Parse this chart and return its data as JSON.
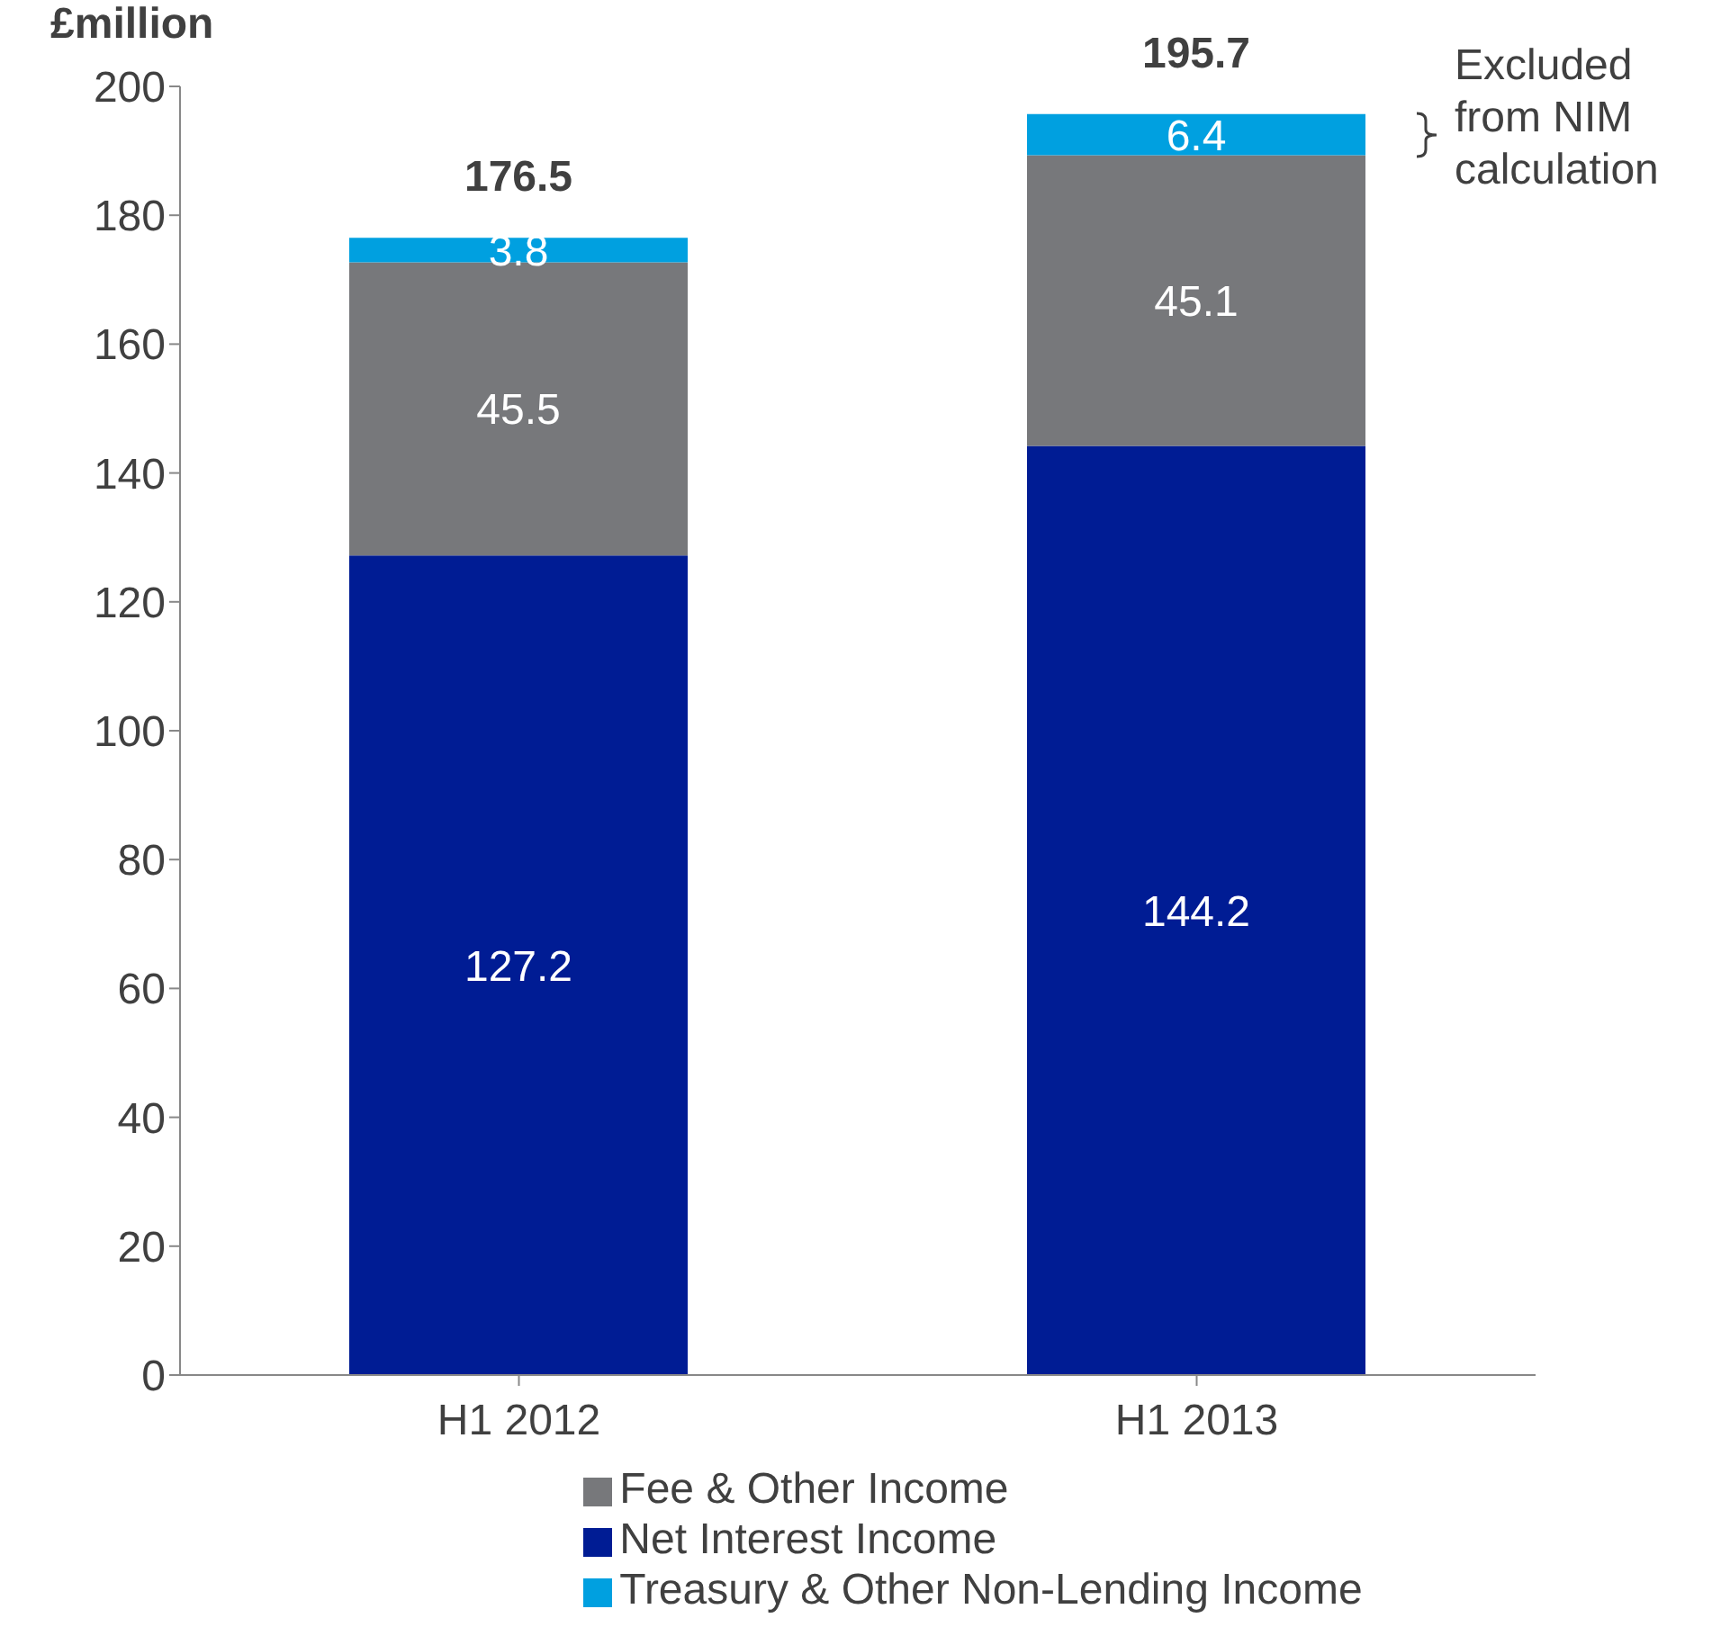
{
  "chart_data": {
    "type": "bar",
    "ylabel": "£million",
    "categories": [
      "H1 2012",
      "H1 2013"
    ],
    "stacked": true,
    "ylim": [
      0,
      200
    ],
    "yticks": [
      0,
      20,
      40,
      60,
      80,
      100,
      120,
      140,
      160,
      180,
      200
    ],
    "grid": false,
    "legend": "bottom",
    "data_labels": true,
    "totals": [
      "176.5",
      "195.7"
    ],
    "series": [
      {
        "name": "Net Interest Income",
        "color": "#001c94",
        "values": [
          127.2,
          144.2
        ]
      },
      {
        "name": "Fee & Other Income",
        "color": "#77787b",
        "values": [
          45.5,
          45.1
        ]
      },
      {
        "name": "Treasury & Other Non-Lending Income",
        "color": "#00a0e0",
        "values": [
          3.8,
          6.4
        ]
      }
    ],
    "annotations": [
      "Excluded from NIM calculation"
    ]
  }
}
